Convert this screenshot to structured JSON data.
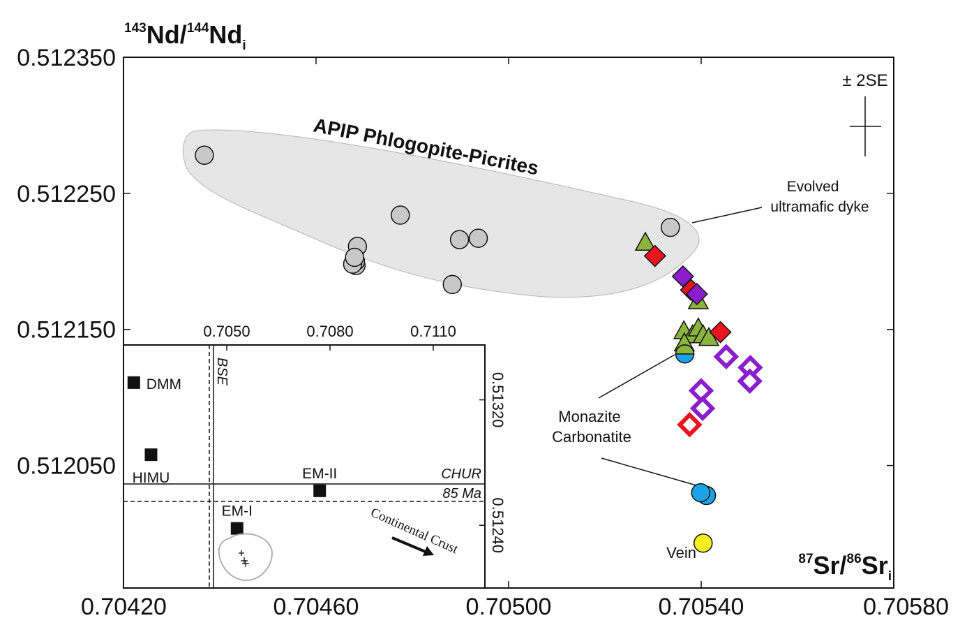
{
  "chart_data": [
    {
      "type": "scatter",
      "xaxis_label": {
        "sup1": "87",
        "base1": "Sr/",
        "sup2": "86",
        "base2": "Sr",
        "sub": "i"
      },
      "yaxis_label": {
        "sup1": "143",
        "base1": "Nd/",
        "sup2": "144",
        "base2": "Nd",
        "sub": "i"
      },
      "xlim": [
        0.7042,
        0.7058
      ],
      "ylim": [
        0.51196,
        0.51235
      ],
      "xticks": [
        {
          "value": 0.7042,
          "label": "0.70420"
        },
        {
          "value": 0.7046,
          "label": "0.70460"
        },
        {
          "value": 0.705,
          "label": "0.70500"
        },
        {
          "value": 0.7054,
          "label": "0.70540"
        },
        {
          "value": 0.7058,
          "label": "0.70580"
        }
      ],
      "yticks": [
        {
          "value": 0.51235,
          "label": "0.512350"
        },
        {
          "value": 0.51225,
          "label": "0.512250"
        },
        {
          "value": 0.51215,
          "label": "0.512150"
        },
        {
          "value": 0.51205,
          "label": "0.512050"
        }
      ],
      "error_bar_label": "± 2SE",
      "annotations": {
        "field_label": "APIP Phlogopite-Picrites",
        "evolved_line1": "Evolved",
        "evolved_line2": "ultramafic dyke",
        "monazite_line1": "Monazite",
        "monazite_line2": "Carbonatite",
        "vein": "Vein"
      },
      "series": [
        {
          "marker": "circle",
          "fill": "#c8c8c8",
          "points": [
            [
              0.704368,
              0.512278
            ],
            [
              0.704683,
              0.512197
            ],
            [
              0.704686,
              0.512211
            ],
            [
              0.704682,
              0.5122
            ],
            [
              0.704676,
              0.512198
            ],
            [
              0.70468,
              0.512203
            ],
            [
              0.704775,
              0.512234
            ],
            [
              0.704898,
              0.512216
            ],
            [
              0.704937,
              0.512217
            ],
            [
              0.704883,
              0.512183
            ],
            [
              0.705336,
              0.512225
            ]
          ]
        },
        {
          "marker": "triangle",
          "fill": "#8ab43c",
          "points": [
            [
              0.705284,
              0.512214
            ],
            [
              0.705364,
              0.512149
            ],
            [
              0.705382,
              0.512146
            ],
            [
              0.705394,
              0.512151
            ],
            [
              0.705404,
              0.512146
            ],
            [
              0.705416,
              0.512144
            ],
            [
              0.705365,
              0.51214
            ],
            [
              0.705394,
              0.512171
            ]
          ]
        },
        {
          "marker": "diamond",
          "fill": "#e8141e",
          "points": [
            [
              0.705304,
              0.512204
            ],
            [
              0.705379,
              0.512179
            ],
            [
              0.70544,
              0.512148
            ]
          ]
        },
        {
          "marker": "diamond",
          "fill": "#8a1ecc",
          "points": [
            [
              0.705362,
              0.512189
            ],
            [
              0.705391,
              0.512176
            ]
          ]
        },
        {
          "marker": "diamond-open",
          "fill": "#8a1ecc",
          "points": [
            [
              0.705452,
              0.51213
            ],
            [
              0.705502,
              0.512122
            ],
            [
              0.705501,
              0.512112
            ],
            [
              0.7054,
              0.512105
            ],
            [
              0.705403,
              0.512092
            ]
          ]
        },
        {
          "marker": "diamond-open",
          "fill": "#e8141e",
          "points": [
            [
              0.705376,
              0.51208
            ]
          ]
        },
        {
          "marker": "half-circle",
          "fill": "#1aa3e8",
          "points": [
            [
              0.705366,
              0.512132
            ]
          ]
        },
        {
          "marker": "circle",
          "fill": "#1aa3e8",
          "points": [
            [
              0.705411,
              0.512028
            ],
            [
              0.705399,
              0.51203
            ]
          ]
        },
        {
          "marker": "circle",
          "fill": "#f5f01e",
          "points": [
            [
              0.705404,
              0.511993
            ]
          ]
        }
      ]
    },
    {
      "type": "scatter",
      "role": "inset",
      "xticks": [
        {
          "value": 0.705,
          "label": "0.7050"
        },
        {
          "value": 0.708,
          "label": "0.7080"
        },
        {
          "value": 0.711,
          "label": "0.7110"
        }
      ],
      "yticks": [
        {
          "value": 0.5132,
          "label": "0.51320"
        },
        {
          "value": 0.5124,
          "label": "0.51240"
        }
      ],
      "reference_lines": {
        "bse": "BSE",
        "chur": "CHUR",
        "age": "85 Ma"
      },
      "end_members": [
        {
          "label": "DMM",
          "x": 0.7023,
          "y": 0.51331
        },
        {
          "label": "HIMU",
          "x": 0.7028,
          "y": 0.51285
        },
        {
          "label": "EM-II",
          "x": 0.7077,
          "y": 0.51262
        },
        {
          "label": "EM-I",
          "x": 0.7053,
          "y": 0.51238
        }
      ],
      "crust_label": "Continental Crust"
    }
  ]
}
